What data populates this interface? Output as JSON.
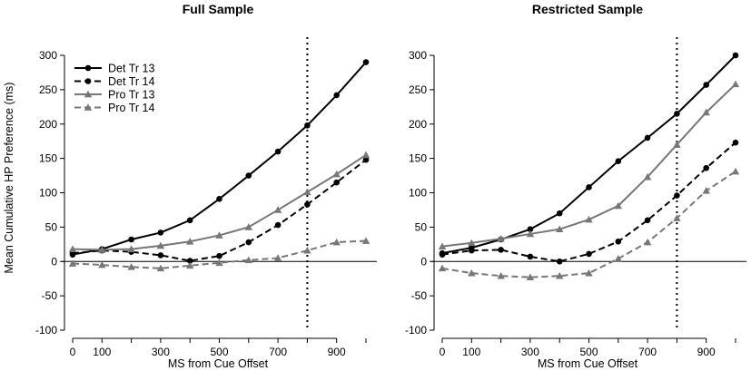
{
  "figure": {
    "shared_ylabel": "Mean Cumulative HP Preference (ms)"
  },
  "chart_data": [
    {
      "type": "line",
      "title": "Full Sample",
      "xlabel": "MS from Cue Offset",
      "ylabel": "Mean Cumulative HP Preference (ms)",
      "xlim": [
        0,
        1000
      ],
      "ylim": [
        -100,
        300
      ],
      "x_ticks": [
        0,
        100,
        300,
        500,
        700,
        900
      ],
      "y_ticks": [
        -100,
        -50,
        0,
        50,
        100,
        150,
        200,
        250,
        300
      ],
      "hline": 0,
      "vline": 800,
      "legend_position": "top-left",
      "x": [
        0,
        100,
        200,
        300,
        400,
        500,
        600,
        700,
        800,
        900,
        1000
      ],
      "series": [
        {
          "name": "Det Tr 13",
          "color": "#000000",
          "dash": "solid",
          "marker": "circle",
          "values": [
            10,
            18,
            32,
            42,
            60,
            91,
            125,
            160,
            198,
            242,
            290
          ]
        },
        {
          "name": "Det Tr 14",
          "color": "#000000",
          "dash": "dashed",
          "marker": "circle",
          "values": [
            12,
            16,
            14,
            9,
            1,
            8,
            28,
            53,
            83,
            115,
            148
          ]
        },
        {
          "name": "Pro Tr 13",
          "color": "#777777",
          "dash": "solid",
          "marker": "triangle",
          "values": [
            18,
            17,
            18,
            23,
            29,
            38,
            50,
            75,
            101,
            127,
            155
          ]
        },
        {
          "name": "Pro Tr 14",
          "color": "#777777",
          "dash": "dashed",
          "marker": "triangle",
          "values": [
            -3,
            -5,
            -8,
            -10,
            -6,
            -2,
            2,
            5,
            16,
            28,
            30
          ]
        }
      ]
    },
    {
      "type": "line",
      "title": "Restricted Sample",
      "xlabel": "MS from Cue Offset",
      "ylabel": "",
      "xlim": [
        0,
        1000
      ],
      "ylim": [
        -100,
        300
      ],
      "x_ticks": [
        0,
        100,
        300,
        500,
        700,
        900
      ],
      "y_ticks": [
        -100,
        -50,
        0,
        50,
        100,
        150,
        200,
        250,
        300
      ],
      "hline": 0,
      "vline": 800,
      "x": [
        0,
        100,
        200,
        300,
        400,
        500,
        600,
        700,
        800,
        900,
        1000
      ],
      "series": [
        {
          "name": "Det Tr 13",
          "color": "#000000",
          "dash": "solid",
          "marker": "circle",
          "values": [
            12,
            20,
            32,
            47,
            70,
            108,
            146,
            180,
            215,
            257,
            300
          ]
        },
        {
          "name": "Det Tr 14",
          "color": "#000000",
          "dash": "dashed",
          "marker": "circle",
          "values": [
            10,
            16,
            17,
            7,
            0,
            11,
            29,
            60,
            96,
            136,
            173
          ]
        },
        {
          "name": "Pro Tr 13",
          "color": "#777777",
          "dash": "solid",
          "marker": "triangle",
          "values": [
            22,
            27,
            33,
            40,
            47,
            61,
            81,
            123,
            170,
            217,
            258
          ]
        },
        {
          "name": "Pro Tr 14",
          "color": "#777777",
          "dash": "dashed",
          "marker": "triangle",
          "values": [
            -10,
            -17,
            -21,
            -23,
            -21,
            -17,
            4,
            28,
            63,
            103,
            131
          ]
        }
      ]
    }
  ]
}
